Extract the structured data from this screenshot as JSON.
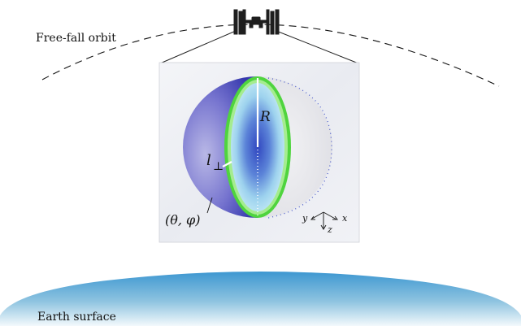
{
  "labels": {
    "orbit": "Free-fall orbit",
    "earth": "Earth surface",
    "radius": "R",
    "thickness_symbol": "l",
    "thickness_subscript": "⊥",
    "angles": "(θ, φ)",
    "axis_x": "x",
    "axis_y": "y",
    "axis_z": "z"
  },
  "icons": [
    "satellite-icon",
    "axes-triad-icon"
  ],
  "colors": {
    "earth_top": "#4a9fd4",
    "earth_bottom": "#e8f3f8",
    "hemisphere_dark": "#3d3fb3",
    "hemisphere_light": "#a8a6de",
    "shell_edge": "#47d03a",
    "disc_center": "#3a52c4",
    "disc_outer": "#9fd4ee",
    "panel_bg": "#eceef3",
    "satellite": "#222222"
  }
}
